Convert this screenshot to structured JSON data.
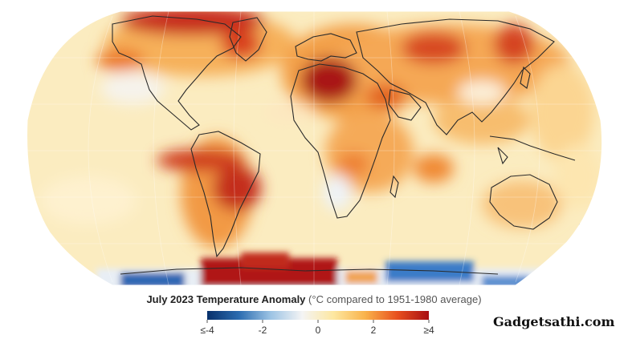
{
  "title": {
    "main": "July 2023 Temperature Anomaly",
    "sub": "(°C compared to 1951-1980 average)"
  },
  "legend": {
    "ticks": [
      {
        "value": -4,
        "label": "≤-4"
      },
      {
        "value": -2,
        "label": "-2"
      },
      {
        "value": 0,
        "label": "0"
      },
      {
        "value": 2,
        "label": "2"
      },
      {
        "value": 4,
        "label": "≥4"
      }
    ],
    "range": [
      -4,
      4
    ],
    "colors": [
      "#08306b",
      "#2b6cb0",
      "#9cc3e4",
      "#f4f4f4",
      "#fde7a0",
      "#f9b24a",
      "#e8501e",
      "#a80e12"
    ]
  },
  "watermark": "Gadgetsathi.com",
  "colors": {
    "ocean_base": "#fbecc0",
    "warm": "#f6b862",
    "hot": "#e85a22",
    "very_hot": "#a81313",
    "cool": "#e9f1f8",
    "cold": "#2f6fbb",
    "coastline": "#2a2a2a"
  }
}
